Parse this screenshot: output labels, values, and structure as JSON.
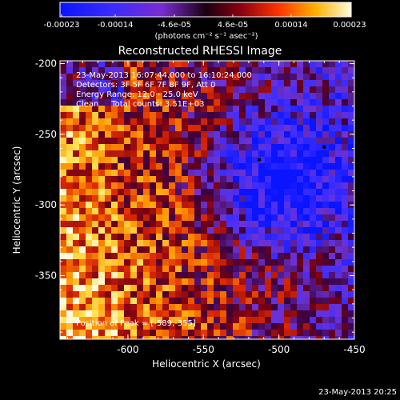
{
  "colorbar": {
    "tick_labels": [
      "-0.00023",
      "-0.00014",
      "-4.6e-05",
      "4.6e-05",
      "0.00014",
      "0.00023"
    ],
    "unit_label": "(photons cm⁻² s⁻¹ asec⁻²)"
  },
  "plot": {
    "title": "Reconstructed RHESSI Image",
    "xlabel": "Heliocentric X (arcsec)",
    "ylabel": "Heliocentric Y (arcsec)",
    "x_ticks": [
      "-600",
      "-550",
      "-500",
      "-450"
    ],
    "y_ticks": [
      "-200",
      "-250",
      "-300",
      "-350"
    ],
    "xlim": [
      -645,
      -450
    ],
    "ylim": [
      -395,
      -198
    ],
    "info_lines": [
      "23-May-2013 16:07:44.000 to 16:10:24.000",
      "Detectors: 3F 5F 6F 7F 8F 9F, Att 0",
      "Energy Range: 12.0 - 25.0 keV",
      "Clean     Total counts: 3.51E+03"
    ],
    "peak_label": "Position of Peak = [-589,-355]",
    "peak": [
      -589,
      -355
    ]
  },
  "footer": {
    "timestamp": "23-May-2013 20:25"
  }
}
